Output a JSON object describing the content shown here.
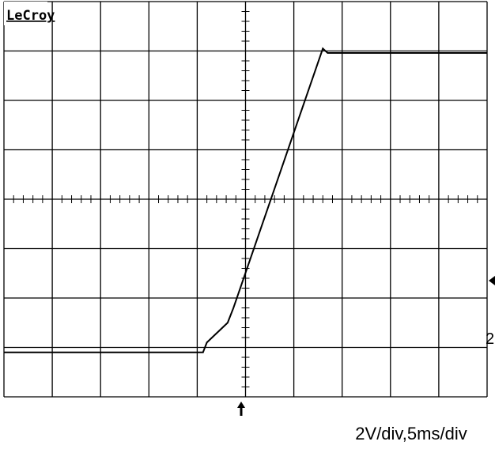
{
  "chart_data": {
    "type": "line",
    "brand": "LeCroy",
    "caption": "2V/div,5ms/div",
    "channel_label": "2",
    "xlim": [
      0,
      10
    ],
    "ylim": [
      0,
      8
    ],
    "xticks": [
      0,
      1,
      2,
      3,
      4,
      5,
      6,
      7,
      8,
      9,
      10
    ],
    "yticks": [
      0,
      1,
      2,
      3,
      4,
      5,
      6,
      7,
      8
    ],
    "grid": true,
    "series": [
      {
        "color": "#000000",
        "x": [
          0,
          4.12,
          4.2,
          4.63,
          4.75,
          6.6,
          6.7,
          10
        ],
        "values": [
          0.9,
          0.9,
          1.1,
          1.5,
          1.8,
          7.05,
          6.96,
          6.96
        ]
      }
    ]
  }
}
